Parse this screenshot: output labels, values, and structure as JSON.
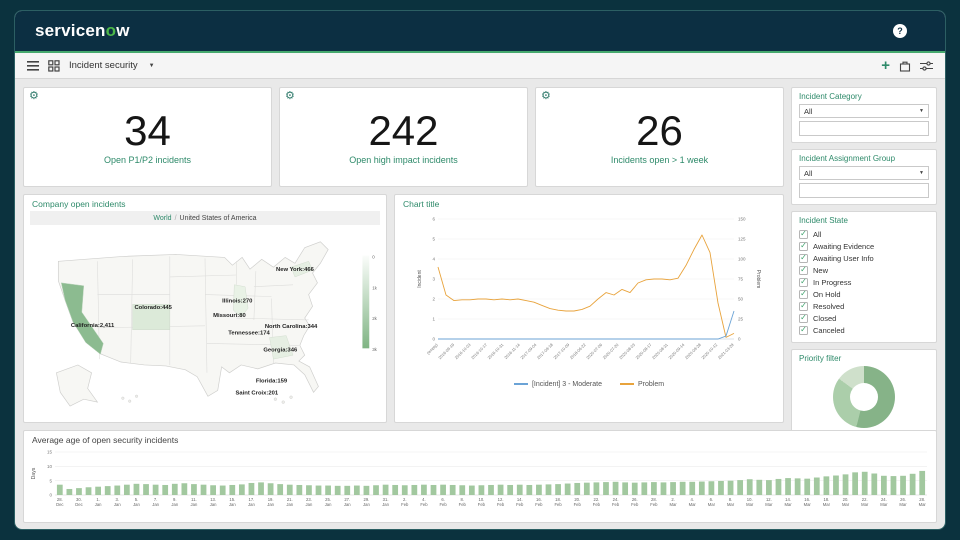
{
  "header": {
    "logo_prefix": "servicen",
    "logo_o": "o",
    "logo_suffix": "w",
    "help_glyph": "?"
  },
  "toolbar": {
    "dashboard_name": "Incident security"
  },
  "kpis": [
    {
      "value": "34",
      "label": "Open P1/P2 incidents"
    },
    {
      "value": "242",
      "label": "Open high impact incidents"
    },
    {
      "value": "26",
      "label": "Incidents open > 1 week"
    }
  ],
  "map_panel": {
    "title": "Company open incidents",
    "breadcrumb": {
      "root": "World",
      "sep": "/",
      "current": "United States of America"
    }
  },
  "line_panel": {
    "title": "Chart title"
  },
  "bottom_panel": {
    "title": "Average age of open security incidents"
  },
  "sidebar": {
    "category": {
      "title": "Incident Category",
      "selected": "All"
    },
    "assignment": {
      "title": "Incident Assignment Group",
      "selected": "All"
    },
    "state": {
      "title": "Incident State",
      "options": [
        {
          "label": "All",
          "checked": true
        },
        {
          "label": "Awaiting Evidence",
          "checked": true
        },
        {
          "label": "Awaiting User Info",
          "checked": true
        },
        {
          "label": "New",
          "checked": true
        },
        {
          "label": "In Progress",
          "checked": true
        },
        {
          "label": "On Hold",
          "checked": true
        },
        {
          "label": "Resolved",
          "checked": true
        },
        {
          "label": "Closed",
          "checked": true
        },
        {
          "label": "Canceled",
          "checked": true
        }
      ]
    },
    "priority": {
      "title": "Priority filter"
    }
  },
  "chart_data": [
    {
      "type": "line",
      "title": "Chart title",
      "left_axis": {
        "label": "Incident",
        "min": 0,
        "max": 6,
        "ticks": [
          0,
          1,
          2,
          3,
          4,
          5,
          6
        ]
      },
      "right_axis": {
        "label": "Problem",
        "min": 0,
        "max": 150,
        "ticks": [
          0,
          25,
          50,
          75,
          100,
          125,
          150
        ]
      },
      "x_tick_labels": [
        "(empty)",
        "2016-09-19",
        "2016-10-03",
        "2016-10-17",
        "2016-10-31",
        "2016-11-14",
        "2017-09-04",
        "2017-09-18",
        "2017-10-09",
        "2018-06-22",
        "2020-07-06",
        "2020-07-20",
        "2020-08-03",
        "2020-08-17",
        "2020-08-31",
        "2020-09-14",
        "2020-09-28",
        "2020-10-12",
        "2021-03-29"
      ],
      "series": [
        {
          "name": "[Incident] 3 - Moderate",
          "axis": "left",
          "color": "#6ba3d6",
          "values": [
            0,
            0,
            0,
            0,
            0,
            0,
            0,
            0,
            0,
            0,
            0,
            0,
            0,
            0,
            0,
            0,
            0,
            0,
            0,
            0,
            0,
            0,
            0,
            0,
            0,
            0,
            0,
            0,
            0,
            0,
            0,
            0,
            0,
            0,
            0,
            0,
            0.15,
            1.4
          ]
        },
        {
          "name": "Problem",
          "axis": "right",
          "color": "#e8a33c",
          "values": [
            90,
            55,
            48,
            49,
            49,
            50,
            50,
            49,
            50,
            49,
            50,
            48,
            46,
            42,
            38,
            36,
            35,
            35,
            37,
            41,
            50,
            58,
            55,
            62,
            58,
            70,
            74,
            75,
            75,
            74,
            76,
            92,
            112,
            130,
            108,
            45,
            2,
            7
          ]
        }
      ],
      "legend_position": "bottom"
    },
    {
      "type": "bar",
      "title": "Average age of open security incidents",
      "ylabel": "Days",
      "ylim": [
        0,
        15
      ],
      "yticks": [
        0,
        5,
        10,
        15
      ],
      "color": "#a2c89f",
      "x_tick_labels": [
        "28. Dec",
        "30. Dec",
        "1. Jan",
        "3. Jan",
        "5. Jan",
        "7. Jan",
        "9. Jan",
        "11. Jan",
        "13. Jan",
        "15. Jan",
        "17. Jan",
        "19. Jan",
        "21. Jan",
        "23. Jan",
        "25. Jan",
        "27. Jan",
        "29. Jan",
        "31. Jan",
        "2. Feb",
        "4. Feb",
        "6. Feb",
        "8. Feb",
        "10. Feb",
        "12. Feb",
        "14. Feb",
        "16. Feb",
        "18. Feb",
        "20. Feb",
        "22. Feb",
        "24. Feb",
        "26. Feb",
        "28. Feb",
        "2. Mar",
        "4. Mar",
        "6. Mar",
        "8. Mar",
        "10. Mar",
        "12. Mar",
        "14. Mar",
        "16. Mar",
        "18. Mar",
        "20. Mar",
        "22. Mar",
        "24. Mar",
        "26. Mar",
        "28. Mar"
      ],
      "values": [
        3.6,
        2.1,
        2.4,
        2.7,
        2.9,
        3.1,
        3.3,
        3.6,
        3.9,
        3.8,
        3.6,
        3.5,
        3.9,
        4.1,
        3.8,
        3.6,
        3.4,
        3.3,
        3.5,
        3.7,
        4.2,
        4.4,
        4.1,
        3.8,
        3.6,
        3.5,
        3.4,
        3.3,
        3.3,
        3.2,
        3.2,
        3.3,
        3.2,
        3.4,
        3.6,
        3.5,
        3.4,
        3.5,
        3.6,
        3.5,
        3.6,
        3.5,
        3.4,
        3.3,
        3.4,
        3.5,
        3.6,
        3.5,
        3.6,
        3.5,
        3.6,
        3.7,
        3.8,
        4.0,
        4.2,
        4.3,
        4.4,
        4.5,
        4.6,
        4.4,
        4.3,
        4.4,
        4.5,
        4.4,
        4.5,
        4.6,
        4.6,
        4.7,
        4.8,
        4.9,
        5.0,
        5.2,
        5.5,
        5.3,
        5.2,
        5.6,
        5.9,
        5.8,
        5.7,
        6.1,
        6.5,
        6.8,
        7.2,
        7.9,
        8.1,
        7.5,
        6.7,
        6.6,
        6.7,
        7.4,
        8.4
      ]
    },
    {
      "type": "pie",
      "title": "Priority filter",
      "donut": true,
      "segments": [
        {
          "value": 54,
          "color": "#86b388"
        },
        {
          "value": 31,
          "color": "#abceaa"
        },
        {
          "value": 15,
          "color": "#cfe0cb"
        }
      ]
    },
    {
      "type": "heatmap",
      "title": "Company open incidents",
      "regions": [
        {
          "name": "California",
          "value": 2411,
          "label": "California:2,411"
        },
        {
          "name": "Colorado",
          "value": 445,
          "label": "Colorado:445"
        },
        {
          "name": "Illinois",
          "value": 270,
          "label": "Illinois:270"
        },
        {
          "name": "Missouri",
          "value": 80,
          "label": "Missouri:80"
        },
        {
          "name": "New York",
          "value": 466,
          "label": "New York:466"
        },
        {
          "name": "North Carolina",
          "value": 344,
          "label": "North Carolina:344"
        },
        {
          "name": "Tennessee",
          "value": 174,
          "label": "Tennessee:174"
        },
        {
          "name": "Georgia",
          "value": 346,
          "label": "Georgia:346"
        },
        {
          "name": "Florida",
          "value": 159,
          "label": "Florida:159"
        },
        {
          "name": "Saint Croix",
          "value": 201,
          "label": "Saint Croix:201"
        }
      ],
      "legend_ticks": [
        "0",
        "1k",
        "2k",
        "3k"
      ]
    }
  ]
}
